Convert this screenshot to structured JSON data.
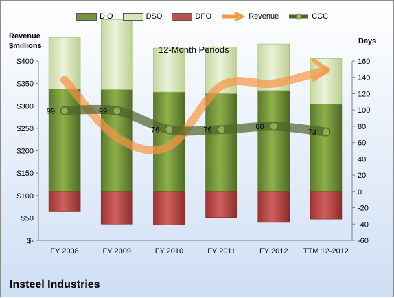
{
  "chart_data": {
    "type": "bar",
    "title": "12-Month Periods",
    "ylabel_left": [
      "Revenue",
      "$millions"
    ],
    "ylabel_right": "Days",
    "company": "Insteel Industries",
    "categories": [
      "FY 2008",
      "FY 2009",
      "FY 2010",
      "FY 2011",
      "FY 2012",
      "TTM 12-2012"
    ],
    "left_axis": {
      "min": 0,
      "max": 400,
      "ticks": [
        "$-",
        "$50",
        "$100",
        "$150",
        "$200",
        "$250",
        "$300",
        "$350",
        "$400"
      ]
    },
    "right_axis": {
      "min": -60,
      "max": 160,
      "ticks": [
        "-60",
        "-40",
        "-20",
        "0",
        "20",
        "40",
        "60",
        "80",
        "100",
        "120",
        "140",
        "160"
      ]
    },
    "series": [
      {
        "name": "DIO",
        "kind": "bar-stack",
        "values": [
          126,
          125,
          122,
          120,
          124,
          107
        ]
      },
      {
        "name": "DSO",
        "kind": "bar-stack",
        "values": [
          63,
          86,
          54,
          57,
          57,
          56
        ]
      },
      {
        "name": "DPO",
        "kind": "bar-negative",
        "values": [
          -25,
          -40,
          -41,
          -32,
          -38,
          -34
        ]
      },
      {
        "name": "Revenue",
        "kind": "line",
        "axis": "left",
        "values": [
          358,
          230,
          210,
          345,
          350,
          380
        ]
      },
      {
        "name": "CCC",
        "kind": "line",
        "axis": "right",
        "values": [
          99,
          99,
          76,
          76,
          80,
          73
        ]
      }
    ],
    "ccc_labels": [
      "99",
      "99",
      "76",
      "76",
      "80",
      "73"
    ],
    "colors": {
      "dio": "#77933c",
      "dso": "#d7e4bd",
      "dpo": "#c0504d",
      "revenue": "#f79646",
      "ccc": "#4f6228"
    },
    "legend_position": "top"
  }
}
